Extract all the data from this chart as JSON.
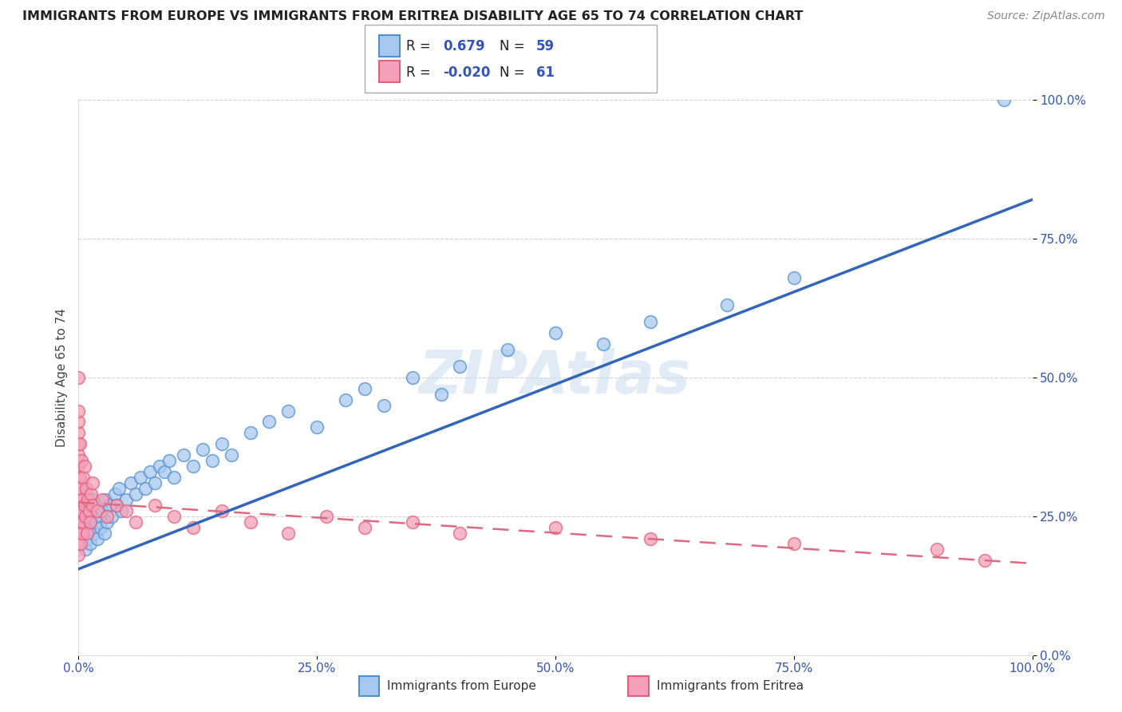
{
  "title": "IMMIGRANTS FROM EUROPE VS IMMIGRANTS FROM ERITREA DISABILITY AGE 65 TO 74 CORRELATION CHART",
  "source": "Source: ZipAtlas.com",
  "ylabel": "Disability Age 65 to 74",
  "xlim": [
    0.0,
    1.0
  ],
  "ylim": [
    0.0,
    1.0
  ],
  "xticks": [
    0.0,
    0.25,
    0.5,
    0.75,
    1.0
  ],
  "xtick_labels": [
    "0.0%",
    "25.0%",
    "50.0%",
    "75.0%",
    "100.0%"
  ],
  "yticks": [
    0.0,
    0.25,
    0.5,
    0.75,
    1.0
  ],
  "ytick_labels": [
    "0.0%",
    "25.0%",
    "50.0%",
    "75.0%",
    "100.0%"
  ],
  "europe_R": 0.679,
  "europe_N": 59,
  "eritrea_R": -0.02,
  "eritrea_N": 61,
  "europe_color": "#a8c8f0",
  "eritrea_color": "#f4a0b8",
  "europe_edge_color": "#5090cc",
  "eritrea_edge_color": "#e06080",
  "europe_line_color": "#3366bb",
  "eritrea_line_color": "#e06880",
  "watermark": "ZIPAtlas",
  "legend_color": "#3355bb",
  "europe_scatter_x": [
    0.005,
    0.007,
    0.008,
    0.01,
    0.01,
    0.012,
    0.013,
    0.015,
    0.015,
    0.016,
    0.018,
    0.019,
    0.02,
    0.022,
    0.023,
    0.025,
    0.027,
    0.028,
    0.03,
    0.032,
    0.035,
    0.038,
    0.04,
    0.042,
    0.045,
    0.05,
    0.055,
    0.06,
    0.065,
    0.07,
    0.075,
    0.08,
    0.085,
    0.09,
    0.095,
    0.1,
    0.11,
    0.12,
    0.13,
    0.14,
    0.15,
    0.16,
    0.18,
    0.2,
    0.22,
    0.25,
    0.28,
    0.3,
    0.32,
    0.35,
    0.38,
    0.4,
    0.45,
    0.5,
    0.55,
    0.6,
    0.68,
    0.75,
    0.97
  ],
  "europe_scatter_y": [
    0.22,
    0.19,
    0.24,
    0.21,
    0.26,
    0.2,
    0.23,
    0.25,
    0.28,
    0.22,
    0.24,
    0.27,
    0.21,
    0.25,
    0.23,
    0.26,
    0.22,
    0.28,
    0.24,
    0.27,
    0.25,
    0.29,
    0.27,
    0.3,
    0.26,
    0.28,
    0.31,
    0.29,
    0.32,
    0.3,
    0.33,
    0.31,
    0.34,
    0.33,
    0.35,
    0.32,
    0.36,
    0.34,
    0.37,
    0.35,
    0.38,
    0.36,
    0.4,
    0.42,
    0.44,
    0.41,
    0.46,
    0.48,
    0.45,
    0.5,
    0.47,
    0.52,
    0.55,
    0.58,
    0.56,
    0.6,
    0.63,
    0.68,
    1.0
  ],
  "eritrea_scatter_x": [
    0.0,
    0.0,
    0.0,
    0.0,
    0.0,
    0.0,
    0.0,
    0.0,
    0.0,
    0.0,
    0.0,
    0.0,
    0.0,
    0.0,
    0.0,
    0.001,
    0.001,
    0.001,
    0.001,
    0.001,
    0.002,
    0.002,
    0.002,
    0.003,
    0.003,
    0.004,
    0.004,
    0.005,
    0.005,
    0.006,
    0.006,
    0.007,
    0.008,
    0.009,
    0.01,
    0.011,
    0.012,
    0.013,
    0.015,
    0.015,
    0.02,
    0.025,
    0.03,
    0.04,
    0.05,
    0.06,
    0.08,
    0.1,
    0.12,
    0.15,
    0.18,
    0.22,
    0.26,
    0.3,
    0.35,
    0.4,
    0.5,
    0.6,
    0.75,
    0.9,
    0.95
  ],
  "eritrea_scatter_y": [
    0.18,
    0.2,
    0.22,
    0.24,
    0.26,
    0.28,
    0.3,
    0.32,
    0.34,
    0.36,
    0.38,
    0.4,
    0.42,
    0.44,
    0.5,
    0.22,
    0.25,
    0.28,
    0.32,
    0.38,
    0.2,
    0.24,
    0.3,
    0.26,
    0.35,
    0.22,
    0.28,
    0.24,
    0.32,
    0.27,
    0.34,
    0.25,
    0.3,
    0.22,
    0.28,
    0.26,
    0.24,
    0.29,
    0.27,
    0.31,
    0.26,
    0.28,
    0.25,
    0.27,
    0.26,
    0.24,
    0.27,
    0.25,
    0.23,
    0.26,
    0.24,
    0.22,
    0.25,
    0.23,
    0.24,
    0.22,
    0.23,
    0.21,
    0.2,
    0.19,
    0.17
  ],
  "europe_line_x0": 0.0,
  "europe_line_y0": 0.155,
  "europe_line_x1": 1.0,
  "europe_line_y1": 0.82,
  "eritrea_line_x0": 0.0,
  "eritrea_line_y0": 0.275,
  "eritrea_line_x1": 1.0,
  "eritrea_line_y1": 0.165
}
